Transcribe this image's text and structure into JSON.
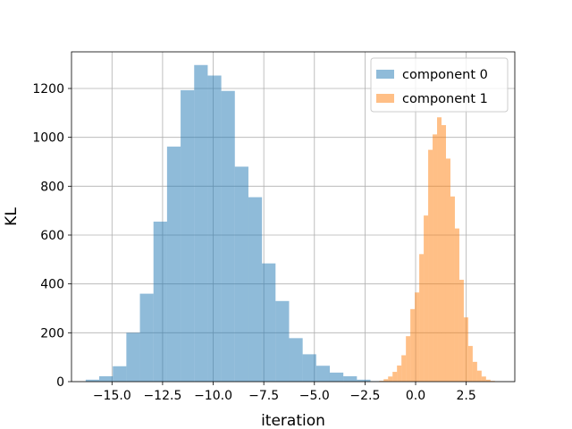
{
  "chart_data": {
    "type": "bar",
    "subtype": "histogram",
    "xlabel": "iteration",
    "ylabel": "KL",
    "xlim": [
      -17.0,
      4.9
    ],
    "ylim": [
      0,
      1350
    ],
    "grid": true,
    "legend_position": "top-right",
    "xticks": [
      -15.0,
      -12.5,
      -10.0,
      -7.5,
      -5.0,
      -2.5,
      0.0,
      2.5
    ],
    "xtick_labels": [
      "−15.0",
      "−12.5",
      "−10.0",
      "−7.5",
      "−5.0",
      "−2.5",
      "0.0",
      "2.5"
    ],
    "yticks": [
      0,
      200,
      400,
      600,
      800,
      1000,
      1200
    ],
    "ytick_labels": [
      "0",
      "200",
      "400",
      "600",
      "800",
      "1000",
      "1200"
    ],
    "series": [
      {
        "name": "component 0",
        "color": "#1f77b4",
        "opacity": 0.5,
        "bin_edges": [
          -16.3,
          -15.63,
          -14.96,
          -14.29,
          -13.62,
          -12.95,
          -12.28,
          -11.61,
          -10.94,
          -10.27,
          -9.6,
          -8.93,
          -8.26,
          -7.59,
          -6.92,
          -6.25,
          -5.58,
          -4.91,
          -4.24,
          -3.57,
          -2.9,
          -2.23,
          -1.56
        ],
        "counts": [
          8,
          22,
          63,
          200,
          360,
          655,
          962,
          1193,
          1296,
          1253,
          1190,
          880,
          755,
          484,
          330,
          178,
          112,
          65,
          37,
          22,
          8,
          2
        ]
      },
      {
        "name": "component 1",
        "color": "#ff7f0e",
        "opacity": 0.5,
        "bin_edges": [
          -1.8,
          -1.58,
          -1.36,
          -1.14,
          -0.92,
          -0.7,
          -0.48,
          -0.26,
          -0.04,
          0.18,
          0.4,
          0.62,
          0.84,
          1.06,
          1.28,
          1.5,
          1.72,
          1.94,
          2.16,
          2.38,
          2.6,
          2.82,
          3.04,
          3.26,
          3.48,
          3.7,
          3.92
        ],
        "counts": [
          3,
          10,
          21,
          40,
          66,
          108,
          186,
          297,
          365,
          522,
          680,
          949,
          1012,
          1082,
          1050,
          913,
          758,
          627,
          417,
          263,
          146,
          81,
          45,
          21,
          8,
          3
        ]
      }
    ]
  }
}
